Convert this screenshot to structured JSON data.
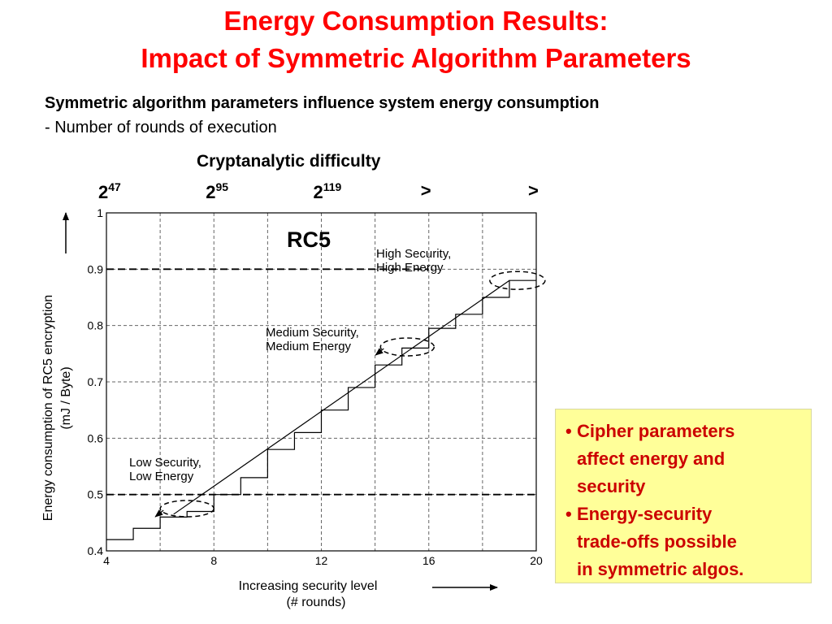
{
  "slide": {
    "title_line1": "Energy Consumption Results:",
    "title_line2": "Impact of Symmetric Algorithm Parameters",
    "subtitle_bold": "Symmetric algorithm parameters influence system energy consumption",
    "subtitle_line": "- Number of rounds of execution"
  },
  "crypt": {
    "title": "Cryptanalytic difficulty",
    "labels": [
      {
        "base": "2",
        "exp": "47",
        "x": 4
      },
      {
        "base": "2",
        "exp": "95",
        "x": 8
      },
      {
        "base": "2",
        "exp": "119",
        "x": 12
      },
      {
        "base": ">",
        "exp": "",
        "x": 16
      },
      {
        "base": ">",
        "exp": "",
        "x": 20
      }
    ]
  },
  "callout": {
    "bullets": [
      "Cipher parameters affect energy and security",
      "Energy-security trade-offs possible in symmetric algos."
    ],
    "bullet_lines": [
      [
        "Cipher parameters",
        "affect energy and",
        "security"
      ],
      [
        "Energy-security",
        "trade-offs possible",
        "in symmetric algos."
      ]
    ],
    "color": "#cc0000",
    "background": "#ffff99"
  },
  "colors": {
    "title": "#ff0000",
    "text": "#000000"
  },
  "chart_data": {
    "type": "line",
    "title": "RC5",
    "xlabel_line1": "Increasing security level",
    "xlabel_line2": "(# rounds)",
    "ylabel_line1": "Energy consumption of RC5 encryption",
    "ylabel_line2": "(mJ / Byte)",
    "xlim": [
      4,
      20
    ],
    "ylim": [
      0.4,
      1.0
    ],
    "xticks": [
      4,
      8,
      12,
      16,
      20
    ],
    "yticks": [
      0.4,
      0.5,
      0.6,
      0.7,
      0.8,
      0.9,
      1.0
    ],
    "ytick_labels": [
      "0.4",
      "0.5",
      "0.6",
      "0.7",
      "0.8",
      "0.9",
      "1"
    ],
    "grid": true,
    "series": [
      {
        "style": "step",
        "x": [
          4,
          5,
          6,
          7,
          8,
          9,
          10,
          11,
          12,
          13,
          14,
          15,
          16,
          17,
          18,
          19,
          20
        ],
        "y": [
          0.42,
          0.44,
          0.46,
          0.47,
          0.5,
          0.53,
          0.58,
          0.61,
          0.65,
          0.69,
          0.73,
          0.76,
          0.795,
          0.82,
          0.85,
          0.88,
          0.88
        ]
      },
      {
        "style": "line",
        "x": [
          6.5,
          19
        ],
        "y": [
          0.465,
          0.88
        ]
      }
    ],
    "reference_lines": [
      0.9,
      0.5
    ],
    "annotations": [
      {
        "text_line1": "High Security,",
        "text_line2": "High Energy",
        "x": 19.3,
        "y": 0.88
      },
      {
        "text_line1": "Medium Security,",
        "text_line2": "Medium Energy",
        "x": 15.2,
        "y": 0.762
      },
      {
        "text_line1": "Low Security,",
        "text_line2": "Low Energy",
        "x": 7.0,
        "y": 0.475
      }
    ]
  }
}
